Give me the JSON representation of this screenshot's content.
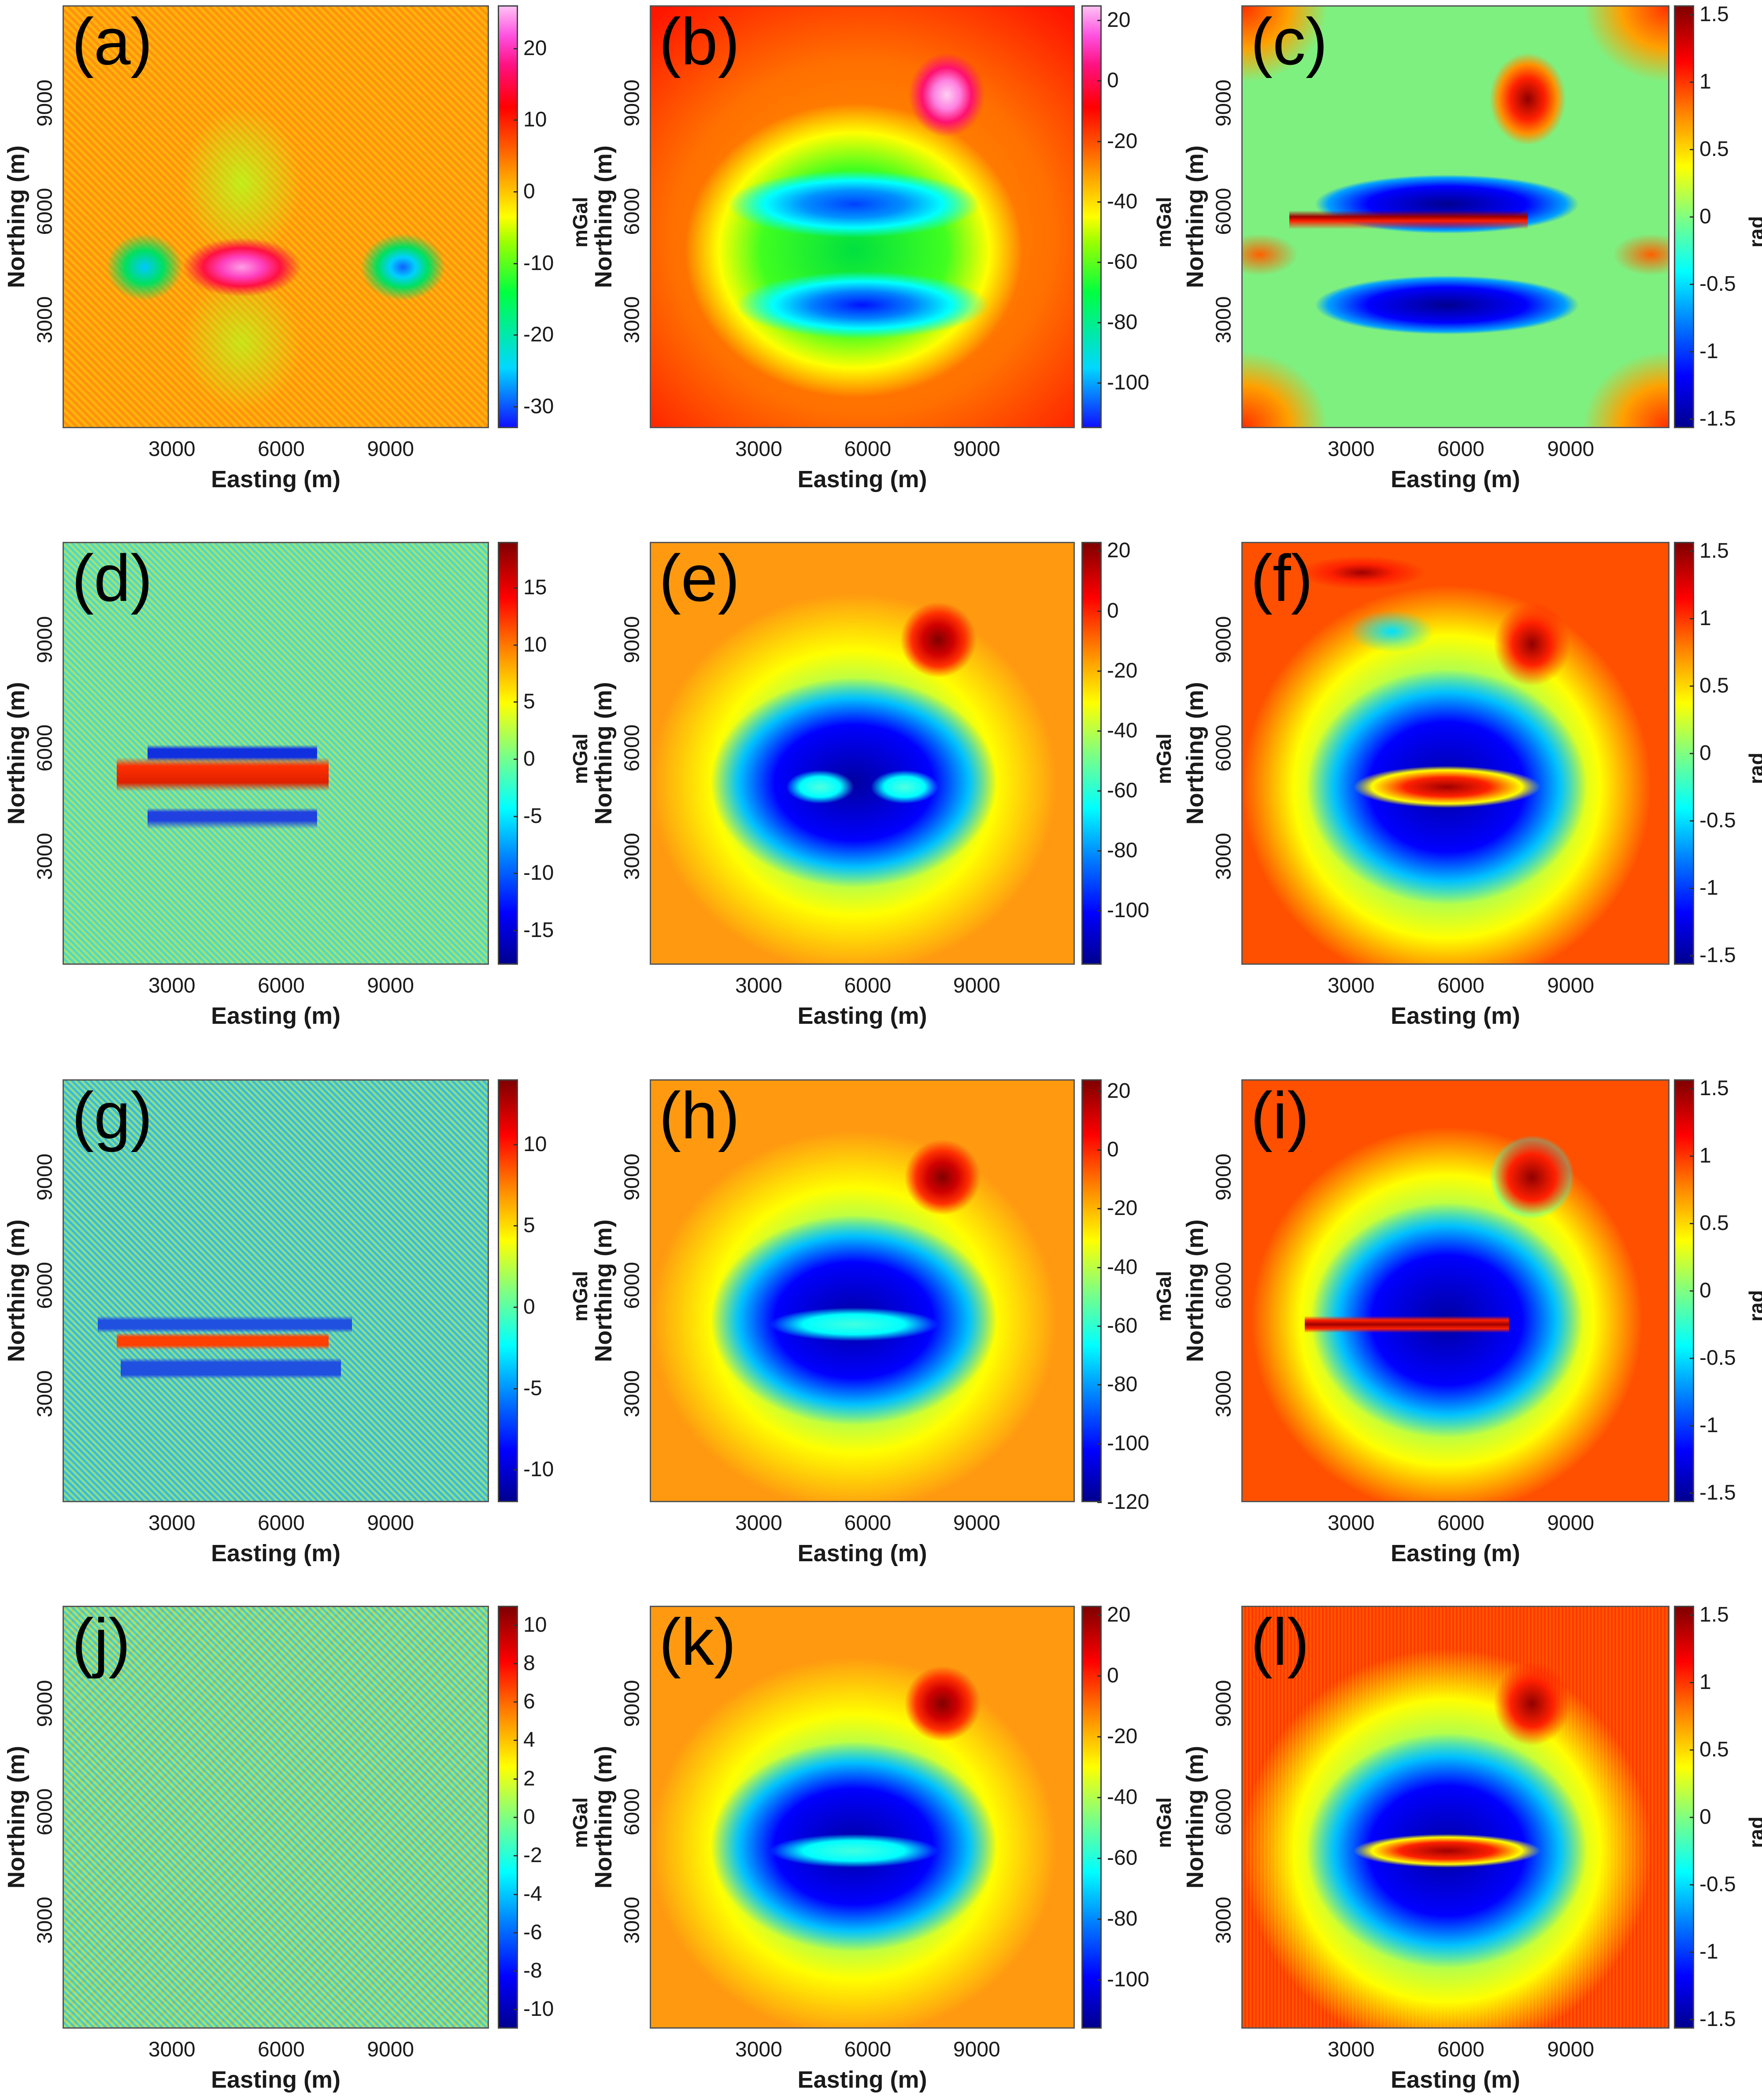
{
  "figure": {
    "panels": [
      {
        "id": "a",
        "label": "(a)",
        "colormap": "hsv-like",
        "cbar_unit": "mGal",
        "cbar_ticks": [
          "20",
          "10",
          "0",
          "-10",
          "-20",
          "-30"
        ],
        "cbar_range": [
          -33,
          26
        ],
        "xticks": [
          "3000",
          "6000",
          "9000"
        ],
        "yticks": [
          "9000",
          "6000",
          "3000"
        ],
        "xlabel": "Easting (m)",
        "ylabel": "Northing (m)"
      },
      {
        "id": "b",
        "label": "(b)",
        "colormap": "hsv-like",
        "cbar_unit": "mGal",
        "cbar_ticks": [
          "20",
          "0",
          "-20",
          "-40",
          "-60",
          "-80",
          "-100"
        ],
        "cbar_range": [
          -115,
          25
        ],
        "xticks": [
          "3000",
          "6000",
          "9000"
        ],
        "yticks": [
          "9000",
          "6000",
          "3000"
        ],
        "xlabel": "Easting (m)",
        "ylabel": "Northing (m)"
      },
      {
        "id": "c",
        "label": "(c)",
        "colormap": "jet",
        "cbar_unit": "rad",
        "cbar_ticks": [
          "1.5",
          "1",
          "0.5",
          "0",
          "-0.5",
          "-1",
          "-1.5"
        ],
        "cbar_range": [
          -1.57,
          1.57
        ],
        "xticks": [
          "3000",
          "6000",
          "9000"
        ],
        "yticks": [
          "9000",
          "6000",
          "3000"
        ],
        "xlabel": "Easting (m)",
        "ylabel": "Northing (m)"
      },
      {
        "id": "d",
        "label": "(d)",
        "colormap": "jet",
        "cbar_unit": "mGal",
        "cbar_ticks": [
          "15",
          "10",
          "5",
          "0",
          "-5",
          "-10",
          "-15"
        ],
        "cbar_range": [
          -18,
          19
        ],
        "xticks": [
          "3000",
          "6000",
          "9000"
        ],
        "yticks": [
          "9000",
          "6000",
          "3000"
        ],
        "xlabel": "Easting (m)",
        "ylabel": "Northing (m)"
      },
      {
        "id": "e",
        "label": "(e)",
        "colormap": "jet",
        "cbar_unit": "mGal",
        "cbar_ticks": [
          "20",
          "0",
          "-20",
          "-40",
          "-60",
          "-80",
          "-100"
        ],
        "cbar_range": [
          -118,
          23
        ],
        "xticks": [
          "3000",
          "6000",
          "9000"
        ],
        "yticks": [
          "9000",
          "6000",
          "3000"
        ],
        "xlabel": "Easting (m)",
        "ylabel": "Northing (m)"
      },
      {
        "id": "f",
        "label": "(f)",
        "colormap": "jet",
        "cbar_unit": "rad",
        "cbar_ticks": [
          "1.5",
          "1",
          "0.5",
          "0",
          "-0.5",
          "-1",
          "-1.5"
        ],
        "cbar_range": [
          -1.57,
          1.57
        ],
        "xticks": [
          "3000",
          "6000",
          "9000"
        ],
        "yticks": [
          "9000",
          "6000",
          "3000"
        ],
        "xlabel": "Easting (m)",
        "ylabel": "Northing (m)"
      },
      {
        "id": "g",
        "label": "(g)",
        "colormap": "jet",
        "cbar_unit": "mGal",
        "cbar_ticks": [
          "10",
          "5",
          "0",
          "-5",
          "-10"
        ],
        "cbar_range": [
          -12,
          14
        ],
        "xticks": [
          "3000",
          "6000",
          "9000"
        ],
        "yticks": [
          "9000",
          "6000",
          "3000"
        ],
        "xlabel": "Easting (m)",
        "ylabel": "Northing (m)"
      },
      {
        "id": "h",
        "label": "(h)",
        "colormap": "jet",
        "cbar_unit": "mGal",
        "cbar_ticks": [
          "20",
          "0",
          "-20",
          "-40",
          "-60",
          "-80",
          "-100",
          "-120"
        ],
        "cbar_range": [
          -120,
          24
        ],
        "xticks": [
          "3000",
          "6000",
          "9000"
        ],
        "yticks": [
          "9000",
          "6000",
          "3000"
        ],
        "xlabel": "Easting (m)",
        "ylabel": "Northing (m)"
      },
      {
        "id": "i",
        "label": "(i)",
        "colormap": "jet",
        "cbar_unit": "rad",
        "cbar_ticks": [
          "1.5",
          "1",
          "0.5",
          "0",
          "-0.5",
          "-1",
          "-1.5"
        ],
        "cbar_range": [
          -1.57,
          1.57
        ],
        "xticks": [
          "3000",
          "6000",
          "9000"
        ],
        "yticks": [
          "9000",
          "6000",
          "3000"
        ],
        "xlabel": "Easting (m)",
        "ylabel": "Northing (m)"
      },
      {
        "id": "j",
        "label": "(j)",
        "colormap": "jet",
        "cbar_unit": "mGal",
        "cbar_ticks": [
          "10",
          "8",
          "6",
          "4",
          "2",
          "0",
          "-2",
          "-4",
          "-6",
          "-8",
          "-10"
        ],
        "cbar_range": [
          -11,
          11
        ],
        "xticks": [
          "3000",
          "6000",
          "9000"
        ],
        "yticks": [
          "9000",
          "6000",
          "3000"
        ],
        "xlabel": "Easting (m)",
        "ylabel": "Northing (m)"
      },
      {
        "id": "k",
        "label": "(k)",
        "colormap": "jet",
        "cbar_unit": "mGal",
        "cbar_ticks": [
          "20",
          "0",
          "-20",
          "-40",
          "-60",
          "-80",
          "-100"
        ],
        "cbar_range": [
          -116,
          23
        ],
        "xticks": [
          "3000",
          "6000",
          "9000"
        ],
        "yticks": [
          "9000",
          "6000",
          "3000"
        ],
        "xlabel": "Easting (m)",
        "ylabel": "Northing (m)"
      },
      {
        "id": "l",
        "label": "(l)",
        "colormap": "jet",
        "cbar_unit": "rad",
        "cbar_ticks": [
          "1.5",
          "1",
          "0.5",
          "0",
          "-0.5",
          "-1",
          "-1.5"
        ],
        "cbar_range": [
          -1.57,
          1.57
        ],
        "xticks": [
          "3000",
          "6000",
          "9000"
        ],
        "yticks": [
          "9000",
          "6000",
          "3000"
        ],
        "xlabel": "Easting (m)",
        "ylabel": "Northing (m)"
      }
    ]
  },
  "chart_data": [
    {
      "type": "heatmap",
      "panel": "(a)",
      "title": "(a)",
      "xlabel": "Easting (m)",
      "ylabel": "Northing (m)",
      "x_ticks": [
        3000,
        6000,
        9000
      ],
      "y_ticks": [
        3000,
        6000,
        9000
      ],
      "xlim": [
        0,
        12000
      ],
      "ylim": [
        0,
        12000
      ],
      "colorbar": {
        "label": "mGal",
        "ticks": [
          -30,
          -20,
          -10,
          0,
          10,
          20
        ],
        "range": [
          -33,
          26
        ]
      },
      "features": [
        "positive anomaly (~+20 mGal) elongated E-W centered near (5000,5200)",
        "negative lows (~-25 to -30 mGal) near (2300,5200) and (9800,5200)",
        "noisy background ~0 to +5 mGal"
      ]
    },
    {
      "type": "heatmap",
      "panel": "(b)",
      "title": "(b)",
      "xlabel": "Easting (m)",
      "ylabel": "Northing (m)",
      "x_ticks": [
        3000,
        6000,
        9000
      ],
      "y_ticks": [
        3000,
        6000,
        9000
      ],
      "xlim": [
        0,
        12000
      ],
      "ylim": [
        0,
        12000
      ],
      "colorbar": {
        "label": "mGal",
        "ticks": [
          -100,
          -80,
          -60,
          -40,
          -20,
          0,
          20
        ],
        "range": [
          -115,
          25
        ]
      },
      "features": [
        "positive peak (~+25 mGal) near (8000,9500)",
        "two E-W negative lows (~-110 mGal) at Northing ~6500 and ~3300",
        "background ~-10 to -20 mGal"
      ]
    },
    {
      "type": "heatmap",
      "panel": "(c)",
      "title": "(c)",
      "xlabel": "Easting (m)",
      "ylabel": "Northing (m)",
      "x_ticks": [
        3000,
        6000,
        9000
      ],
      "y_ticks": [
        3000,
        6000,
        9000
      ],
      "xlim": [
        0,
        12000
      ],
      "ylim": [
        0,
        12000
      ],
      "colorbar": {
        "label": "rad",
        "ticks": [
          -1.5,
          -1,
          -0.5,
          0,
          0.5,
          1,
          1.5
        ],
        "range": [
          -1.57,
          1.57
        ]
      },
      "features": [
        "thin positive line (~1.5 rad) at Northing ~5200",
        "negative bands (~-1.5 rad) at Northing ~6500 and ~3300",
        "positive peak ~1.2 rad near (8000,9500)"
      ]
    },
    {
      "type": "heatmap",
      "panel": "(d)",
      "title": "(d)",
      "xlabel": "Easting (m)",
      "ylabel": "Northing (m)",
      "x_ticks": [
        3000,
        6000,
        9000
      ],
      "y_ticks": [
        3000,
        6000,
        9000
      ],
      "xlim": [
        0,
        12000
      ],
      "ylim": [
        0,
        12000
      ],
      "colorbar": {
        "label": "mGal",
        "ticks": [
          -15,
          -10,
          -5,
          0,
          5,
          10,
          15
        ],
        "range": [
          -18,
          19
        ]
      },
      "features": [
        "positive E-W band (~+12 mGal) at Northing ~5200",
        "negative bands (~-12 mGal) at Northing ~6000 and ~4300",
        "noisy background"
      ]
    },
    {
      "type": "heatmap",
      "panel": "(e)",
      "title": "(e)",
      "xlabel": "Easting (m)",
      "ylabel": "Northing (m)",
      "x_ticks": [
        3000,
        6000,
        9000
      ],
      "y_ticks": [
        3000,
        6000,
        9000
      ],
      "xlim": [
        0,
        12000
      ],
      "ylim": [
        0,
        12000
      ],
      "colorbar": {
        "label": "mGal",
        "ticks": [
          -100,
          -80,
          -60,
          -40,
          -20,
          0,
          20
        ],
        "range": [
          -118,
          23
        ]
      },
      "features": [
        "positive peak (~+20 mGal) near (8000,9500)",
        "broad negative (~-115 mGal) rectangle 3000-9000 E, 2500-7000 N",
        "two relative highs (~-65 mGal) at Northing ~5200"
      ]
    },
    {
      "type": "heatmap",
      "panel": "(f)",
      "title": "(f)",
      "xlabel": "Easting (m)",
      "ylabel": "Northing (m)",
      "x_ticks": [
        3000,
        6000,
        9000
      ],
      "y_ticks": [
        3000,
        6000,
        9000
      ],
      "xlim": [
        0,
        12000
      ],
      "ylim": [
        0,
        12000
      ],
      "colorbar": {
        "label": "rad",
        "ticks": [
          -1.5,
          -1,
          -0.5,
          0,
          0.5,
          1,
          1.5
        ],
        "range": [
          -1.57,
          1.57
        ]
      },
      "features": [
        "central positive dumbbell (~1.4 rad) at Northing ~5200",
        "surrounding negative ring (~-1.5 rad)",
        "positive peak near (8000,9500)",
        "edge effects along borders"
      ]
    },
    {
      "type": "heatmap",
      "panel": "(g)",
      "title": "(g)",
      "xlabel": "Easting (m)",
      "ylabel": "Northing (m)",
      "x_ticks": [
        3000,
        6000,
        9000
      ],
      "y_ticks": [
        3000,
        6000,
        9000
      ],
      "xlim": [
        0,
        12000
      ],
      "ylim": [
        0,
        12000
      ],
      "colorbar": {
        "label": "mGal",
        "ticks": [
          -10,
          -5,
          0,
          5,
          10
        ],
        "range": [
          -12,
          14
        ]
      },
      "features": [
        "thin positive line (~+10 mGal) at Northing ~5000 from 3000 to 9000 E",
        "negative frame outline around it",
        "noisy background"
      ]
    },
    {
      "type": "heatmap",
      "panel": "(h)",
      "title": "(h)",
      "xlabel": "Easting (m)",
      "ylabel": "Northing (m)",
      "x_ticks": [
        3000,
        6000,
        9000
      ],
      "y_ticks": [
        3000,
        6000,
        9000
      ],
      "xlim": [
        0,
        12000
      ],
      "ylim": [
        0,
        12000
      ],
      "colorbar": {
        "label": "mGal",
        "ticks": [
          -120,
          -100,
          -80,
          -60,
          -40,
          -20,
          0,
          20
        ],
        "range": [
          -120,
          24
        ]
      },
      "features": [
        "positive peak (~+20 mGal) near (8000,9500)",
        "broad negative rectangle (~-120 mGal)",
        "thin relative high (~-60 mGal) at Northing ~5000"
      ]
    },
    {
      "type": "heatmap",
      "panel": "(i)",
      "title": "(i)",
      "xlabel": "Easting (m)",
      "ylabel": "Northing (m)",
      "x_ticks": [
        3000,
        6000,
        9000
      ],
      "y_ticks": [
        3000,
        6000,
        9000
      ],
      "xlim": [
        0,
        12000
      ],
      "ylim": [
        0,
        12000
      ],
      "colorbar": {
        "label": "rad",
        "ticks": [
          -1.5,
          -1,
          -0.5,
          0,
          0.5,
          1,
          1.5
        ],
        "range": [
          -1.57,
          1.57
        ]
      },
      "features": [
        "thin positive line (~1.5 rad) at Northing ~5000",
        "negative blocky ring (~-1.5 rad)",
        "blocky positive peak near (8000,9500)",
        "positive border frame"
      ]
    },
    {
      "type": "heatmap",
      "panel": "(j)",
      "title": "(j)",
      "xlabel": "Easting (m)",
      "ylabel": "Northing (m)",
      "x_ticks": [
        3000,
        6000,
        9000
      ],
      "y_ticks": [
        3000,
        6000,
        9000
      ],
      "xlim": [
        0,
        12000
      ],
      "ylim": [
        0,
        12000
      ],
      "colorbar": {
        "label": "mGal",
        "ticks": [
          -10,
          -8,
          -6,
          -4,
          -2,
          0,
          2,
          4,
          6,
          8,
          10
        ],
        "range": [
          -11,
          11
        ]
      },
      "features": [
        "random noise residual, mostly -4 to +4 mGal"
      ]
    },
    {
      "type": "heatmap",
      "panel": "(k)",
      "title": "(k)",
      "xlabel": "Easting (m)",
      "ylabel": "Northing (m)",
      "x_ticks": [
        3000,
        6000,
        9000
      ],
      "y_ticks": [
        3000,
        6000,
        9000
      ],
      "xlim": [
        0,
        12000
      ],
      "ylim": [
        0,
        12000
      ],
      "colorbar": {
        "label": "mGal",
        "ticks": [
          -100,
          -80,
          -60,
          -40,
          -20,
          0,
          20
        ],
        "range": [
          -116,
          23
        ]
      },
      "features": [
        "positive peak (~+20 mGal) near (8000,9500)",
        "broad negative rectangle (~-115 mGal)",
        "relative high band (~-60 mGal) at Northing ~5000"
      ]
    },
    {
      "type": "heatmap",
      "panel": "(l)",
      "title": "(l)",
      "xlabel": "Easting (m)",
      "ylabel": "Northing (m)",
      "x_ticks": [
        3000,
        6000,
        9000
      ],
      "y_ticks": [
        3000,
        6000,
        9000
      ],
      "xlim": [
        0,
        12000
      ],
      "ylim": [
        0,
        12000
      ],
      "colorbar": {
        "label": "rad",
        "ticks": [
          -1.5,
          -1,
          -0.5,
          0,
          0.5,
          1,
          1.5
        ],
        "range": [
          -1.57,
          1.57
        ]
      },
      "features": [
        "positive E-W band (~1.5 rad) at Northing ~5000",
        "negative ring (~-1.5 rad)",
        "positive peak near (8000,9500)",
        "noisy positive border"
      ]
    }
  ]
}
